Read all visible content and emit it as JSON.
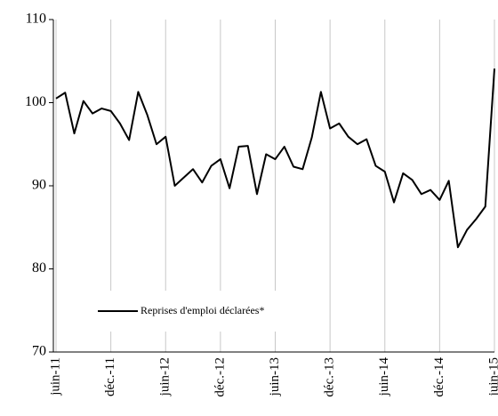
{
  "chart_data": {
    "type": "line",
    "categories": [
      "juin-11",
      null,
      null,
      null,
      null,
      null,
      "déc.-11",
      null,
      null,
      null,
      null,
      null,
      "juin-12",
      null,
      null,
      null,
      null,
      null,
      "déc.-12",
      null,
      null,
      null,
      null,
      null,
      "juin-13",
      null,
      null,
      null,
      null,
      null,
      "déc.-13",
      null,
      null,
      null,
      null,
      null,
      "juin-14",
      null,
      null,
      null,
      null,
      null,
      "déc.-14",
      null,
      null,
      null,
      null,
      null,
      "juin-15"
    ],
    "series": [
      {
        "name": "Reprises d'emploi déclarées*",
        "color": "#000000",
        "values": [
          100.5,
          101.2,
          96.3,
          100.2,
          98.7,
          99.3,
          99.0,
          97.5,
          95.5,
          101.3,
          98.5,
          95.0,
          95.9,
          90.0,
          91.0,
          92.0,
          90.4,
          92.4,
          93.2,
          89.7,
          94.7,
          94.8,
          89.0,
          93.8,
          93.2,
          94.7,
          92.3,
          92.0,
          95.8,
          101.3,
          96.9,
          97.5,
          95.9,
          95.0,
          95.6,
          92.4,
          91.7,
          88.0,
          91.5,
          90.7,
          89.0,
          89.5,
          88.3,
          90.6,
          82.6,
          84.7,
          86.0,
          87.5,
          104.1
        ]
      }
    ],
    "ylim": [
      70,
      110
    ],
    "yticks": [
      70,
      80,
      90,
      100,
      110
    ],
    "legend": "lower-left"
  }
}
